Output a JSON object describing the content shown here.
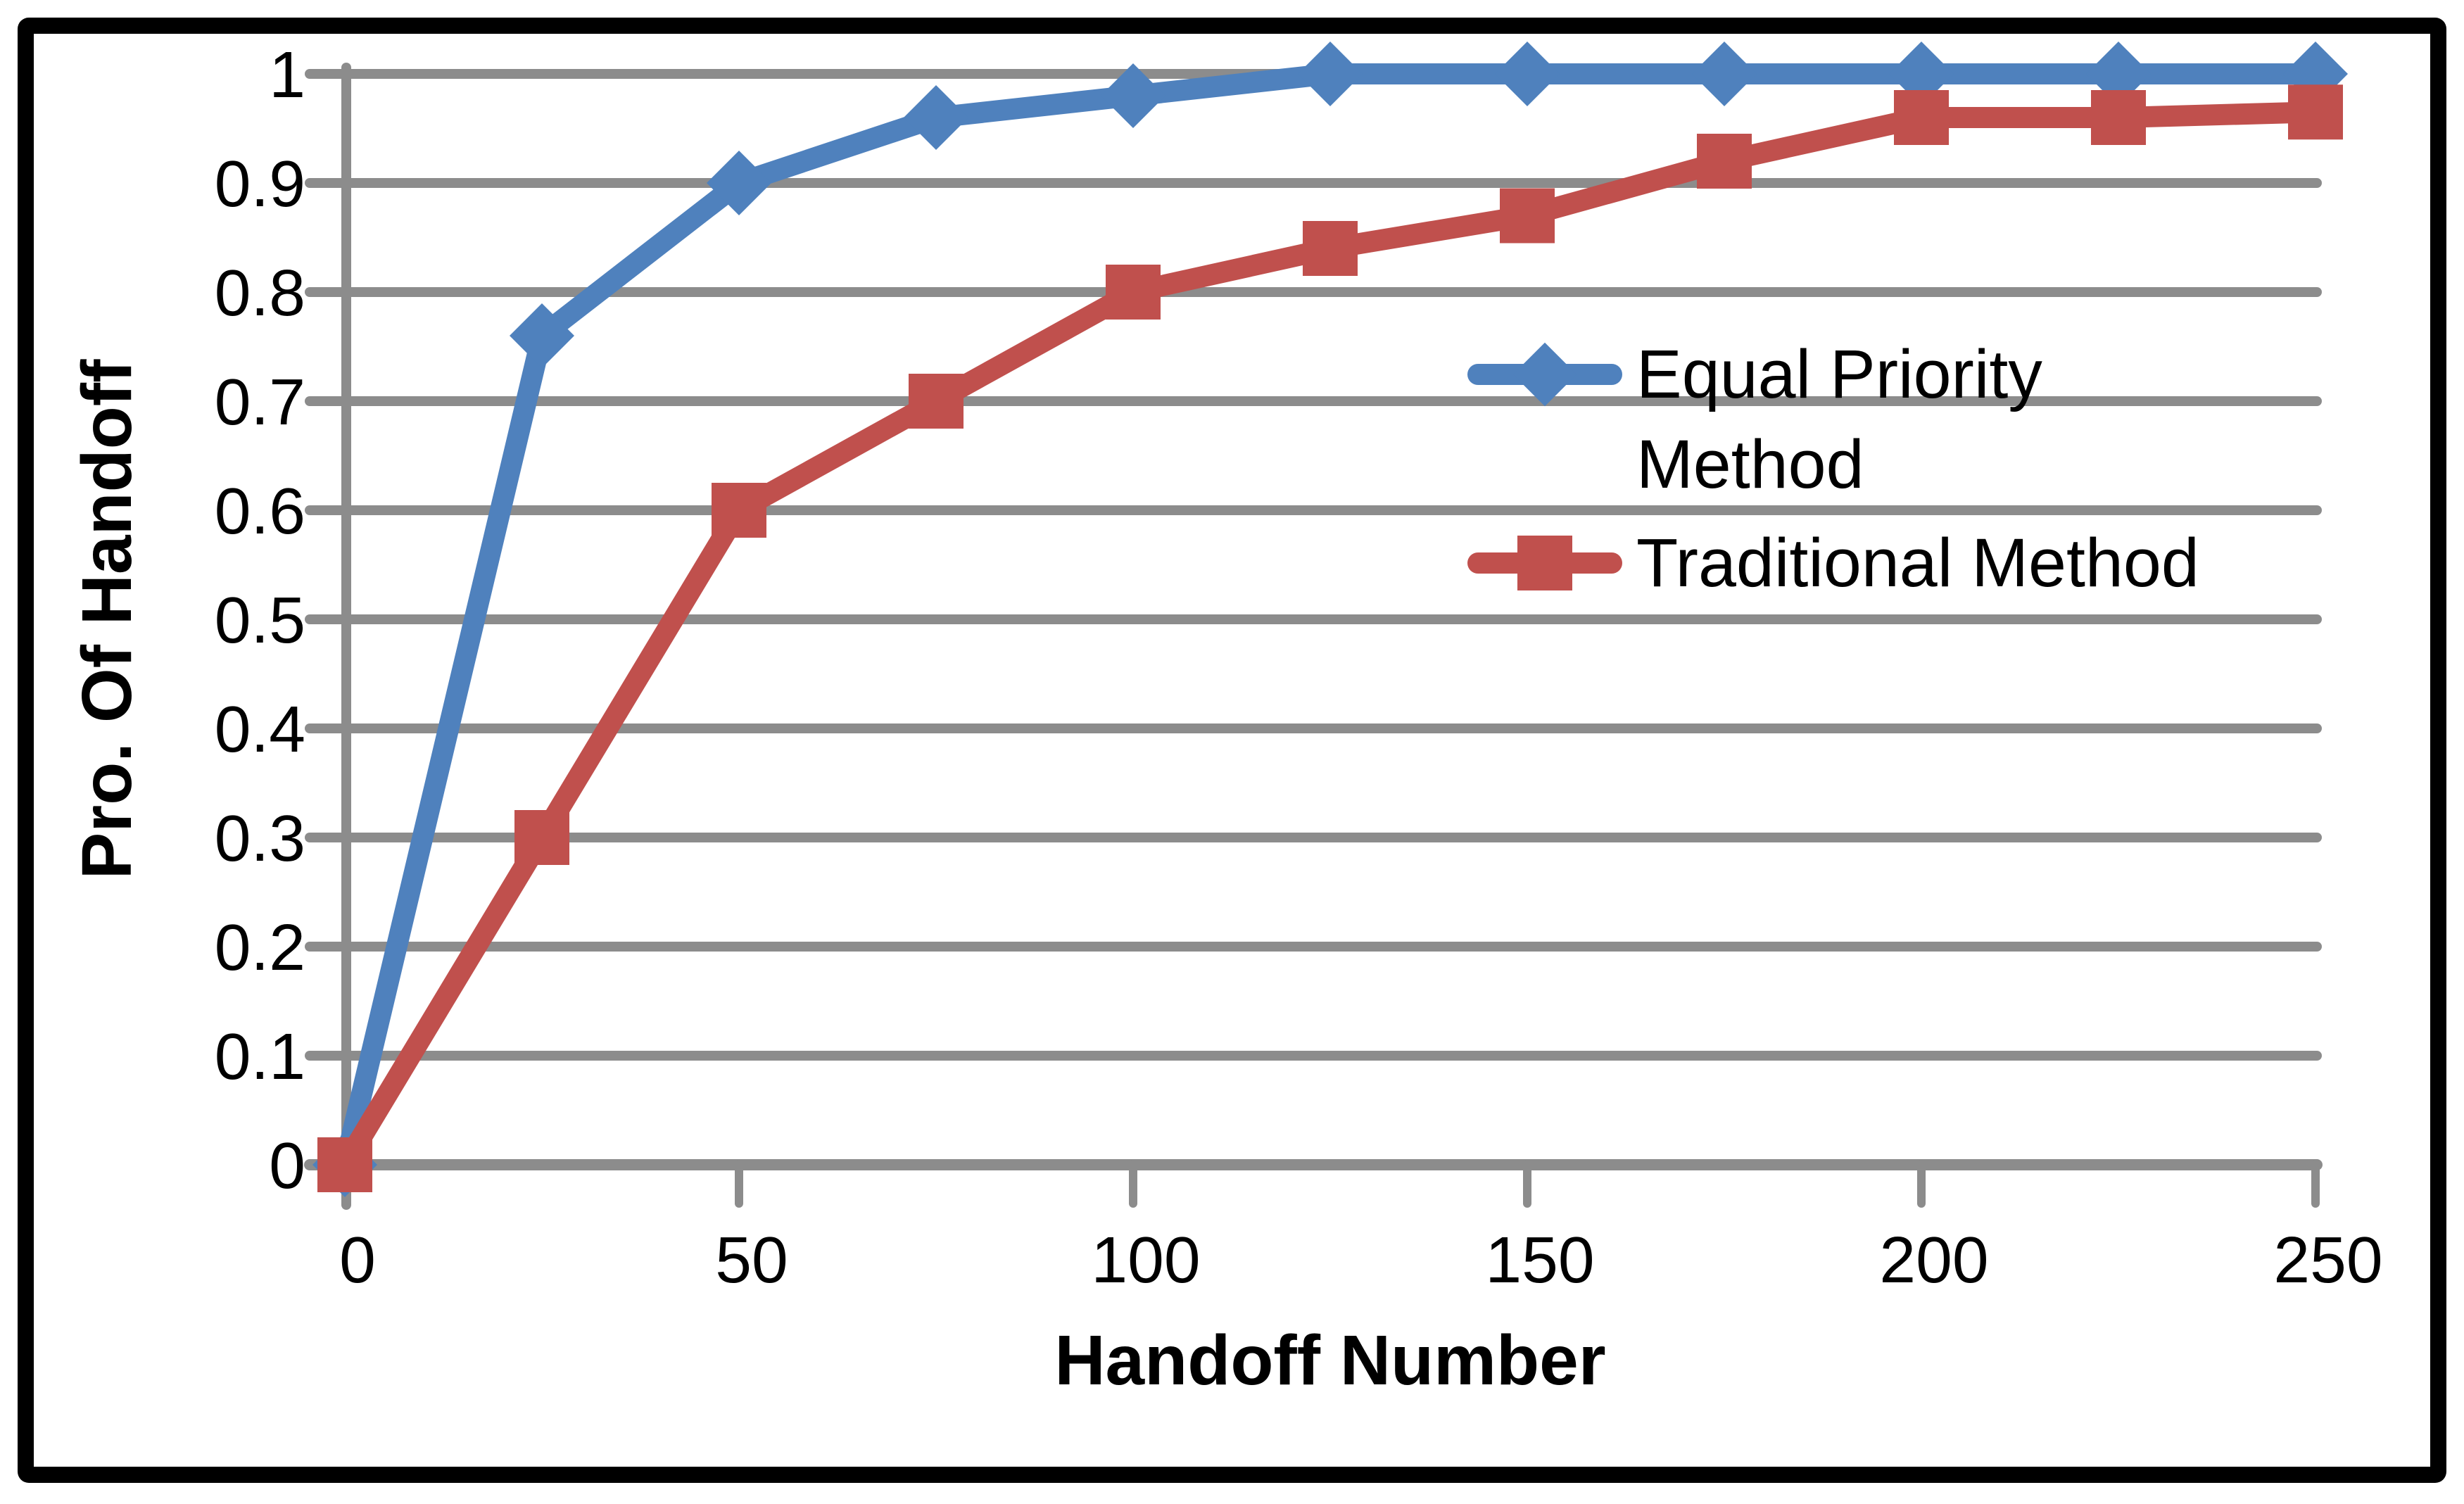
{
  "chart_data": {
    "type": "line",
    "title": "",
    "xlabel": "Handoff Number",
    "ylabel": "Pro. Of Handoff",
    "x": [
      0,
      25,
      50,
      75,
      100,
      125,
      150,
      175,
      200,
      225,
      250
    ],
    "series": [
      {
        "name": "Equal Priority Method",
        "color": "#4F81BD",
        "marker": "diamond",
        "values": [
          0,
          0.76,
          0.9,
          0.96,
          0.98,
          1.0,
          1.0,
          1.0,
          1.0,
          1.0,
          1.0
        ]
      },
      {
        "name": "Traditional Method",
        "color": "#C0504D",
        "marker": "square",
        "values": [
          0,
          0.3,
          0.6,
          0.7,
          0.8,
          0.84,
          0.87,
          0.92,
          0.96,
          0.96,
          0.965
        ]
      }
    ],
    "x_ticks": [
      {
        "label": "0",
        "value": 0
      },
      {
        "label": "50",
        "value": 50
      },
      {
        "label": "100",
        "value": 100
      },
      {
        "label": "150",
        "value": 150
      },
      {
        "label": "200",
        "value": 200
      },
      {
        "label": "250",
        "value": 250
      }
    ],
    "y_ticks": [
      {
        "label": "1",
        "value": 1
      },
      {
        "label": "0.9",
        "value": 0.9
      },
      {
        "label": "0.8",
        "value": 0.8
      },
      {
        "label": "0.7",
        "value": 0.7
      },
      {
        "label": "0.6",
        "value": 0.6
      },
      {
        "label": "0.5",
        "value": 0.5
      },
      {
        "label": "0.4",
        "value": 0.4
      },
      {
        "label": "0.3",
        "value": 0.3
      },
      {
        "label": "0.2",
        "value": 0.2
      },
      {
        "label": "0.1",
        "value": 0.1
      },
      {
        "label": "0",
        "value": 0
      }
    ],
    "xlim": [
      0,
      250
    ],
    "ylim": [
      0,
      1
    ],
    "grid": "horizontal-only",
    "legend_position": "inside-right",
    "colors": {
      "gridline": "#8C8C8C",
      "axis": "#8C8C8C",
      "text": "#000000",
      "background": "#FFFFFF",
      "frame": "#000000"
    }
  }
}
